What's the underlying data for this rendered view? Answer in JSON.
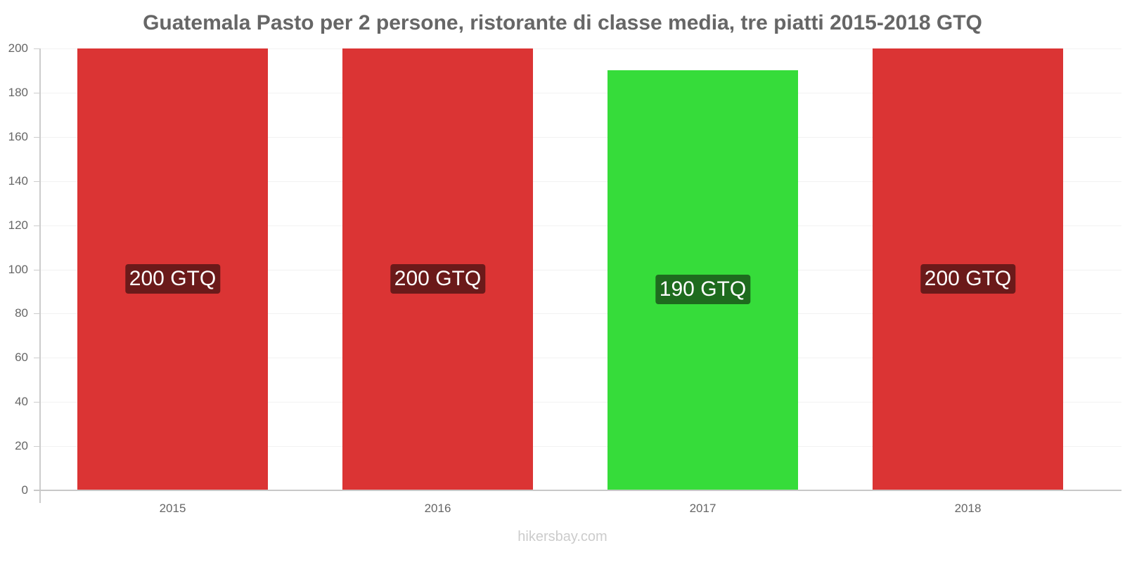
{
  "title": "Guatemala Pasto per 2 persone, ristorante di classe media, tre piatti 2015-2018 GTQ",
  "footer": "hikersbay.com",
  "chart_data": {
    "type": "bar",
    "title": "Guatemala Pasto per 2 persone, ristorante di classe media, tre piatti 2015-2018 GTQ",
    "categories": [
      "2015",
      "2016",
      "2017",
      "2018"
    ],
    "values": [
      200,
      200,
      190,
      200
    ],
    "labels": [
      "200 GTQ",
      "200 GTQ",
      "190 GTQ",
      "200 GTQ"
    ],
    "colors": [
      "#db3434",
      "#db3434",
      "#36dc3a",
      "#db3434"
    ],
    "label_bg": [
      "#6b1a1a",
      "#6b1a1a",
      "#1e6b1e",
      "#6b1a1a"
    ],
    "xlabel": "",
    "ylabel": "",
    "ylim": [
      0,
      200
    ],
    "yticks": [
      0,
      20,
      40,
      60,
      80,
      100,
      120,
      140,
      160,
      180,
      200
    ],
    "grid": true,
    "legend": false
  }
}
